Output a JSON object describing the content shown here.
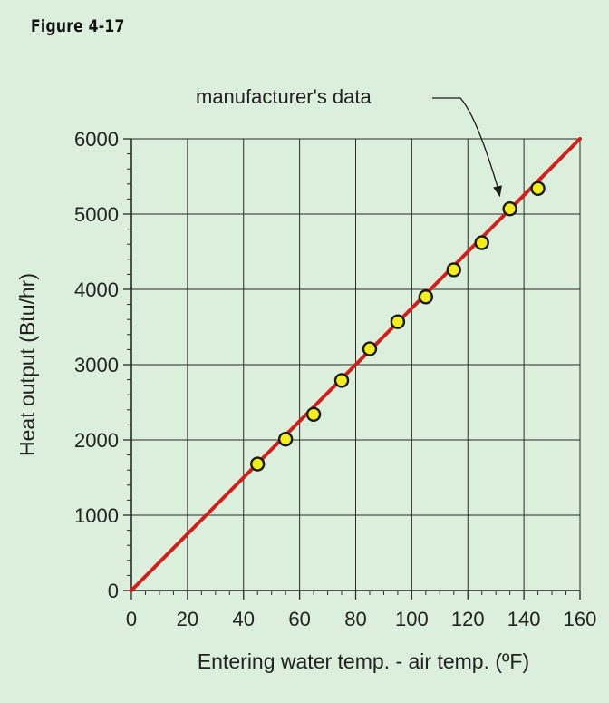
{
  "figure_label": "Figure 4-17",
  "colors": {
    "background": "#dcefdc",
    "grid": "#2a2a2a",
    "fit_line": "#d0201c",
    "point_fill": "#f3ee1a",
    "point_stroke": "#1a1a1a"
  },
  "chart_data": {
    "type": "scatter",
    "title": "",
    "xlabel": "Entering water temp. - air temp. (ºF)",
    "ylabel": "Heat output (Btu/hr)",
    "xlim": [
      0,
      160
    ],
    "ylim": [
      0,
      6000
    ],
    "x_ticks": [
      "0",
      "20",
      "40",
      "60",
      "80",
      "100",
      "120",
      "140",
      "160"
    ],
    "y_ticks": [
      "0",
      "1000",
      "2000",
      "3000",
      "4000",
      "5000",
      "6000"
    ],
    "grid": true,
    "points": [
      {
        "x": 45,
        "y": 1680
      },
      {
        "x": 55,
        "y": 2010
      },
      {
        "x": 65,
        "y": 2340
      },
      {
        "x": 75,
        "y": 2790
      },
      {
        "x": 85,
        "y": 3210
      },
      {
        "x": 95,
        "y": 3570
      },
      {
        "x": 105,
        "y": 3900
      },
      {
        "x": 115,
        "y": 4260
      },
      {
        "x": 125,
        "y": 4620
      },
      {
        "x": 135,
        "y": 5070
      },
      {
        "x": 145,
        "y": 5340
      }
    ],
    "fit_line": {
      "x": [
        0,
        160
      ],
      "y": [
        0,
        6000
      ]
    },
    "annotation": {
      "text": "manufacturer's data",
      "target_point_index": 9
    }
  }
}
